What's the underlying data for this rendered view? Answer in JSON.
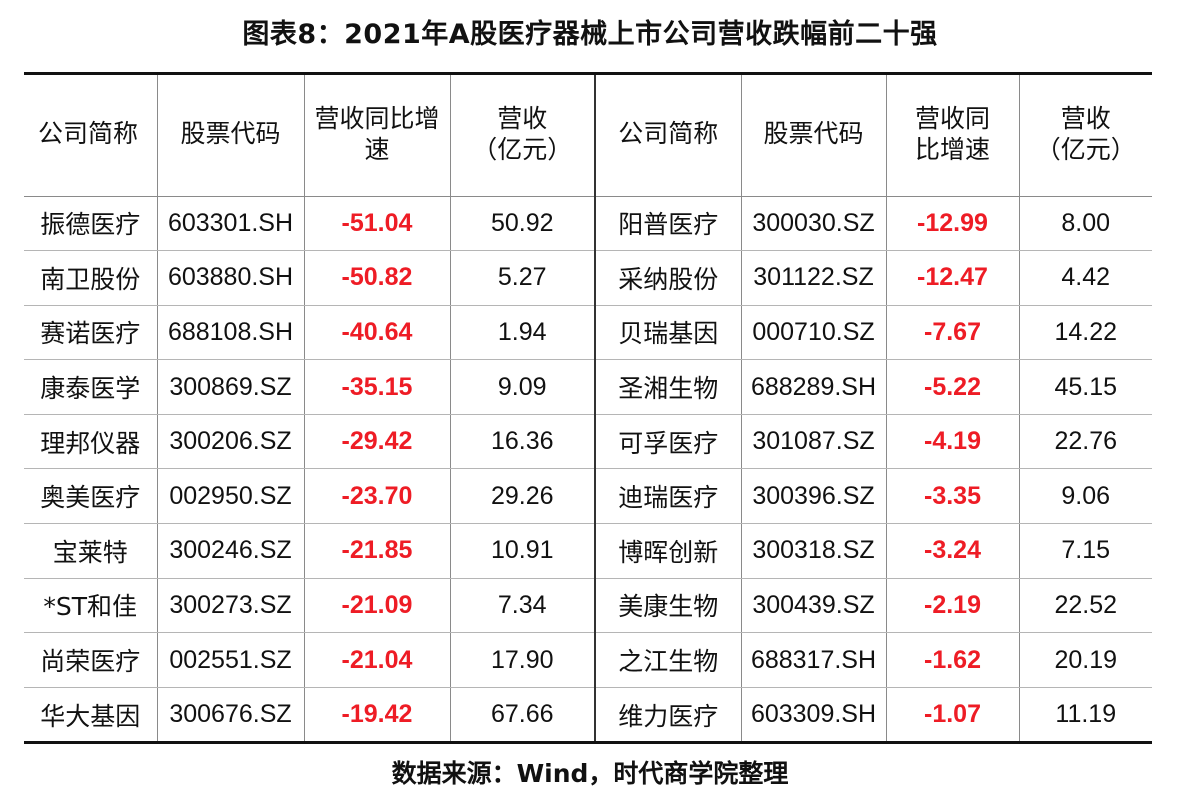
{
  "title": "图表8：2021年A股医疗器械上市公司营收跌幅前二十强",
  "headers": {
    "name": "公司简称",
    "code": "股票代码",
    "growth": "营收同比增速",
    "revenue_line1": "营收",
    "revenue_line2": "（亿元）"
  },
  "growth_color": "#ee1c25",
  "left_rows": [
    {
      "name": "振德医疗",
      "code": "603301.SH",
      "growth": "-51.04",
      "revenue": "50.92"
    },
    {
      "name": "南卫股份",
      "code": "603880.SH",
      "growth": "-50.82",
      "revenue": "5.27"
    },
    {
      "name": "赛诺医疗",
      "code": "688108.SH",
      "growth": "-40.64",
      "revenue": "1.94"
    },
    {
      "name": "康泰医学",
      "code": "300869.SZ",
      "growth": "-35.15",
      "revenue": "9.09"
    },
    {
      "name": "理邦仪器",
      "code": "300206.SZ",
      "growth": "-29.42",
      "revenue": "16.36"
    },
    {
      "name": "奥美医疗",
      "code": "002950.SZ",
      "growth": "-23.70",
      "revenue": "29.26"
    },
    {
      "name": "宝莱特",
      "code": "300246.SZ",
      "growth": "-21.85",
      "revenue": "10.91"
    },
    {
      "name": "*ST和佳",
      "code": "300273.SZ",
      "growth": "-21.09",
      "revenue": "7.34"
    },
    {
      "name": "尚荣医疗",
      "code": "002551.SZ",
      "growth": "-21.04",
      "revenue": "17.90"
    },
    {
      "name": "华大基因",
      "code": "300676.SZ",
      "growth": "-19.42",
      "revenue": "67.66"
    }
  ],
  "right_rows": [
    {
      "name": "阳普医疗",
      "code": "300030.SZ",
      "growth": "-12.99",
      "revenue": "8.00"
    },
    {
      "name": "采纳股份",
      "code": "301122.SZ",
      "growth": "-12.47",
      "revenue": "4.42"
    },
    {
      "name": "贝瑞基因",
      "code": "000710.SZ",
      "growth": "-7.67",
      "revenue": "14.22"
    },
    {
      "name": "圣湘生物",
      "code": "688289.SH",
      "growth": "-5.22",
      "revenue": "45.15"
    },
    {
      "name": "可孚医疗",
      "code": "301087.SZ",
      "growth": "-4.19",
      "revenue": "22.76"
    },
    {
      "name": "迪瑞医疗",
      "code": "300396.SZ",
      "growth": "-3.35",
      "revenue": "9.06"
    },
    {
      "name": "博晖创新",
      "code": "300318.SZ",
      "growth": "-3.24",
      "revenue": "7.15"
    },
    {
      "name": "美康生物",
      "code": "300439.SZ",
      "growth": "-2.19",
      "revenue": "22.52"
    },
    {
      "name": "之江生物",
      "code": "688317.SH",
      "growth": "-1.62",
      "revenue": "20.19"
    },
    {
      "name": "维力医疗",
      "code": "603309.SH",
      "growth": "-1.07",
      "revenue": "11.19"
    }
  ],
  "source": "数据来源：Wind，时代商学院整理"
}
